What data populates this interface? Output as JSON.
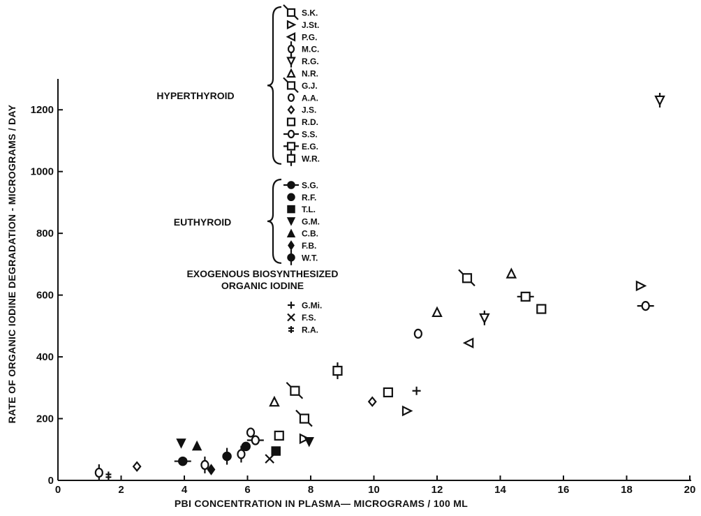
{
  "chart_data": {
    "type": "scatter",
    "title": "",
    "xlabel": "PBI CONCENTRATION IN PLASMA— MICROGRAMS / 100 ML",
    "ylabel": "RATE OF ORGANIC IODINE DEGRADATION - MICROGRAMS / DAY",
    "xlim": [
      0,
      20
    ],
    "ylim": [
      0,
      1300
    ],
    "x_ticks": [
      "0",
      "2",
      "4",
      "6",
      "8",
      "10",
      "12",
      "14",
      "16",
      "18",
      "20"
    ],
    "y_ticks": [
      "0",
      "200",
      "400",
      "600",
      "800",
      "1000",
      "1200"
    ],
    "grid": false,
    "groups": [
      {
        "label": "HYPERTHYROID",
        "series": [
          {
            "name": "S.K.",
            "marker": "square-tl",
            "points": [
              [
                7.5,
                290
              ],
              [
                12.95,
                655
              ]
            ]
          },
          {
            "name": "J.St.",
            "marker": "tri-right",
            "points": [
              [
                7.8,
                135
              ],
              [
                11.05,
                225
              ],
              [
                18.45,
                630
              ]
            ]
          },
          {
            "name": "P.G.",
            "marker": "tri-left",
            "points": [
              [
                13.0,
                445
              ]
            ]
          },
          {
            "name": "M.C.",
            "marker": "circle-v",
            "points": [
              [
                1.3,
                25
              ],
              [
                4.65,
                50
              ],
              [
                5.8,
                85
              ]
            ]
          },
          {
            "name": "R.G.",
            "marker": "tri-down-v",
            "points": [
              [
                13.5,
                525
              ],
              [
                19.05,
                1230
              ]
            ]
          },
          {
            "name": "N.R.",
            "marker": "tri-up",
            "points": [
              [
                6.85,
                255
              ],
              [
                12.0,
                545
              ],
              [
                14.35,
                670
              ]
            ]
          },
          {
            "name": "G.J.",
            "marker": "square-tl",
            "points": [
              [
                7.8,
                200
              ]
            ]
          },
          {
            "name": "A.A.",
            "marker": "circle",
            "points": [
              [
                6.1,
                155
              ],
              [
                11.4,
                475
              ]
            ]
          },
          {
            "name": "J.S.",
            "marker": "diamond-o",
            "points": [
              [
                2.5,
                45
              ],
              [
                9.95,
                255
              ]
            ]
          },
          {
            "name": "R.D.",
            "marker": "square",
            "points": [
              [
                7.0,
                145
              ],
              [
                10.45,
                285
              ],
              [
                15.3,
                555
              ]
            ]
          },
          {
            "name": "S.S.",
            "marker": "circle-h",
            "points": [
              [
                6.25,
                130
              ],
              [
                18.6,
                565
              ]
            ]
          },
          {
            "name": "E.G.",
            "marker": "square-h",
            "points": [
              [
                14.8,
                595
              ]
            ]
          },
          {
            "name": "W.R.",
            "marker": "square-v",
            "points": [
              [
                8.85,
                355
              ]
            ]
          }
        ]
      },
      {
        "label": "EUTHYROID",
        "series": [
          {
            "name": "S.G.",
            "marker": "f-circle-h",
            "points": [
              [
                3.95,
                62
              ]
            ]
          },
          {
            "name": "R.F.",
            "marker": "f-circle",
            "points": [
              [
                5.95,
                110
              ]
            ]
          },
          {
            "name": "T.L.",
            "marker": "f-square",
            "points": [
              [
                6.9,
                95
              ]
            ]
          },
          {
            "name": "G.M.",
            "marker": "f-tri-down",
            "points": [
              [
                3.9,
                120
              ],
              [
                7.95,
                125
              ]
            ]
          },
          {
            "name": "C.B.",
            "marker": "f-tri-up",
            "points": [
              [
                4.4,
                112
              ]
            ]
          },
          {
            "name": "F.B.",
            "marker": "f-diamond",
            "points": [
              [
                4.85,
                35
              ]
            ]
          },
          {
            "name": "W.T.",
            "marker": "f-circle-v",
            "points": [
              [
                5.35,
                78
              ]
            ]
          }
        ]
      },
      {
        "label": "EXOGENOUS BIOSYNTHESIZED ORGANIC IODINE",
        "series": [
          {
            "name": "G.Mi.",
            "marker": "plus",
            "points": [
              [
                11.35,
                290
              ]
            ]
          },
          {
            "name": "F.S.",
            "marker": "cross",
            "points": [
              [
                6.7,
                70
              ]
            ]
          },
          {
            "name": "R.A.",
            "marker": "double-cross",
            "points": [
              [
                1.6,
                15
              ]
            ]
          }
        ]
      }
    ]
  }
}
